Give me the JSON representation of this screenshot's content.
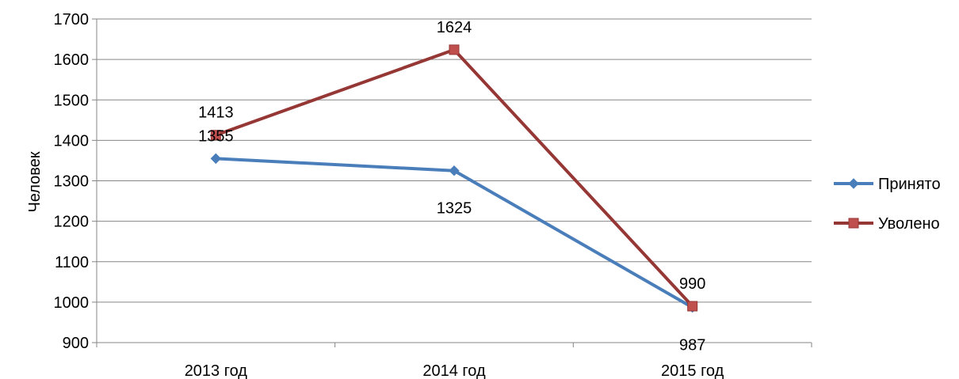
{
  "chart_data": {
    "type": "line",
    "title": "",
    "xlabel": "",
    "ylabel": "Человек",
    "categories": [
      "2013 год",
      "2014 год",
      "2015 год"
    ],
    "ylim": [
      900,
      1700
    ],
    "yticks": [
      900,
      1000,
      1100,
      1200,
      1300,
      1400,
      1500,
      1600,
      1700
    ],
    "grid": true,
    "legend_position": "right",
    "series": [
      {
        "name": "Принято",
        "values": [
          1355,
          1325,
          987
        ],
        "color": "#4a7ebb",
        "marker": "diamond",
        "label_positions": [
          "above",
          "below",
          "below"
        ]
      },
      {
        "name": "Уволено",
        "values": [
          1413,
          1624,
          990
        ],
        "color": "#953735",
        "marker": "square",
        "label_positions": [
          "above",
          "above",
          "above"
        ]
      }
    ]
  }
}
